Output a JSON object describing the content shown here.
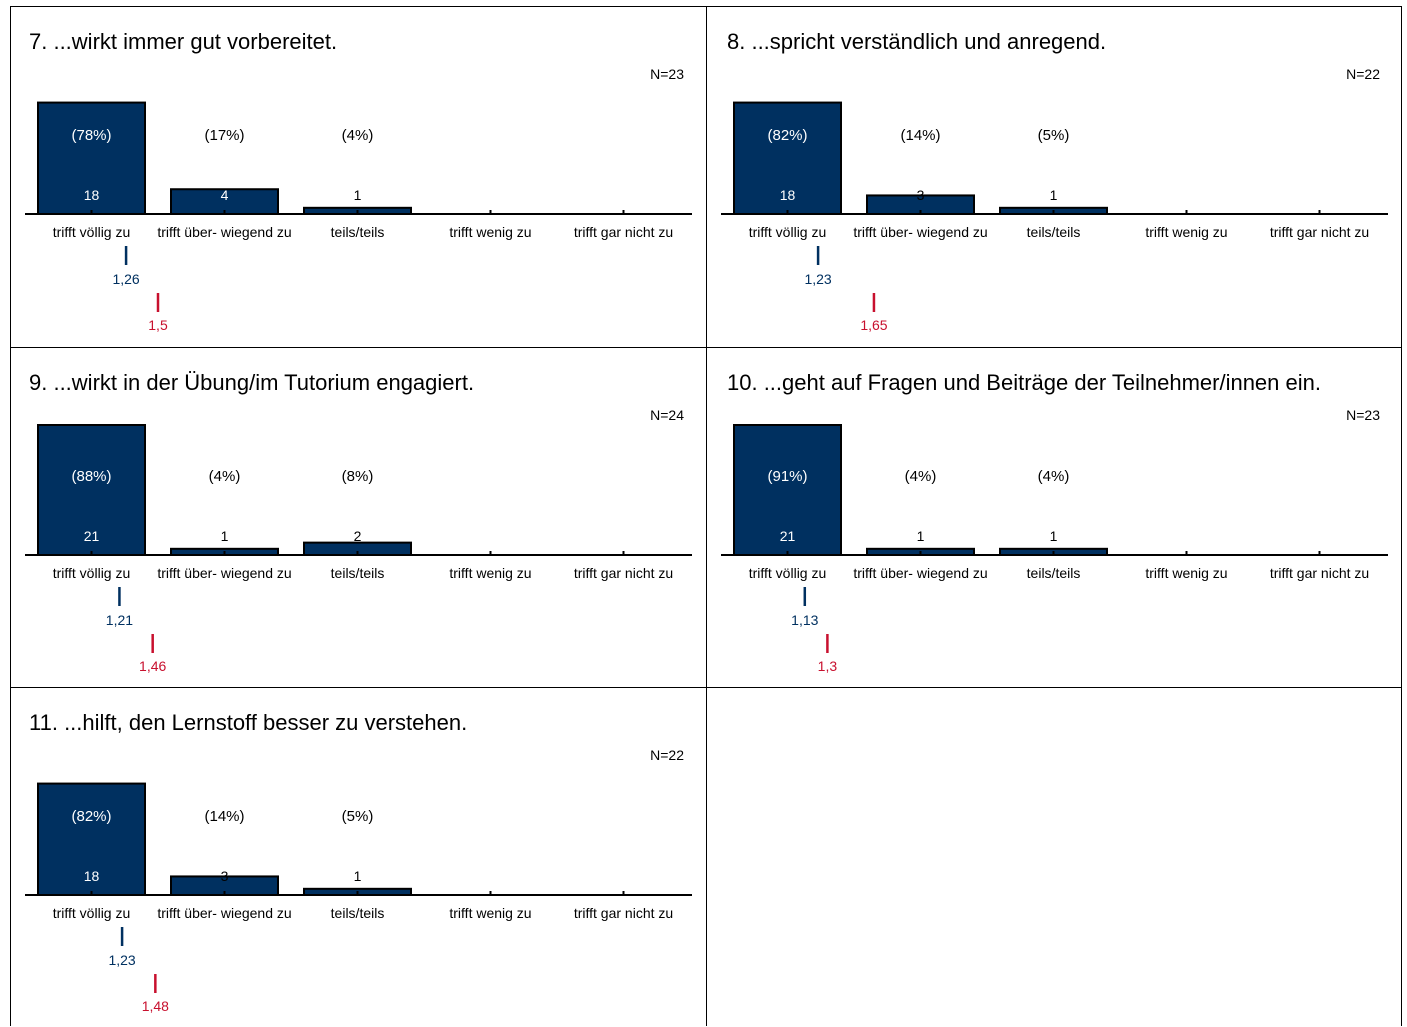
{
  "categories": [
    "trifft völlig zu",
    "trifft über- wiegend zu",
    "teils/teils",
    "trifft wenig zu",
    "trifft gar nicht zu"
  ],
  "colors": {
    "bar": "#003060",
    "mean": "#003060",
    "comparison": "#c8102e"
  },
  "chart_data": [
    {
      "type": "bar",
      "title": "7. ...wirkt immer gut vorbereitet.",
      "n_label": "N=23",
      "categories": [
        "trifft völlig zu",
        "trifft über- wiegend zu",
        "teils/teils",
        "trifft wenig zu",
        "trifft gar nicht zu"
      ],
      "values": [
        18,
        4,
        1,
        0,
        0
      ],
      "percent_labels": [
        "(78%)",
        "(17%)",
        "(4%)",
        "",
        ""
      ],
      "value_labels": [
        "18",
        "4",
        "1",
        "",
        ""
      ],
      "mean": 1.26,
      "mean_label": "1,26",
      "comparison": 1.5,
      "comparison_label": "1,5"
    },
    {
      "type": "bar",
      "title": "8. ...spricht verständlich und anregend.",
      "n_label": "N=22",
      "categories": [
        "trifft völlig zu",
        "trifft über- wiegend zu",
        "teils/teils",
        "trifft wenig zu",
        "trifft gar nicht zu"
      ],
      "values": [
        18,
        3,
        1,
        0,
        0
      ],
      "percent_labels": [
        "(82%)",
        "(14%)",
        "(5%)",
        "",
        ""
      ],
      "value_labels": [
        "18",
        "3",
        "1",
        "",
        ""
      ],
      "mean": 1.23,
      "mean_label": "1,23",
      "comparison": 1.65,
      "comparison_label": "1,65"
    },
    {
      "type": "bar",
      "title": "9. ...wirkt in der Übung/im Tutorium engagiert.",
      "n_label": "N=24",
      "categories": [
        "trifft völlig zu",
        "trifft über- wiegend zu",
        "teils/teils",
        "trifft wenig zu",
        "trifft gar nicht zu"
      ],
      "values": [
        21,
        1,
        2,
        0,
        0
      ],
      "percent_labels": [
        "(88%)",
        "(4%)",
        "(8%)",
        "",
        ""
      ],
      "value_labels": [
        "21",
        "1",
        "2",
        "",
        ""
      ],
      "mean": 1.21,
      "mean_label": "1,21",
      "comparison": 1.46,
      "comparison_label": "1,46"
    },
    {
      "type": "bar",
      "title": "10. ...geht auf Fragen und Beiträge der Teilnehmer/innen ein.",
      "n_label": "N=23",
      "categories": [
        "trifft völlig zu",
        "trifft über- wiegend zu",
        "teils/teils",
        "trifft wenig zu",
        "trifft gar nicht zu"
      ],
      "values": [
        21,
        1,
        1,
        0,
        0
      ],
      "percent_labels": [
        "(91%)",
        "(4%)",
        "(4%)",
        "",
        ""
      ],
      "value_labels": [
        "21",
        "1",
        "1",
        "",
        ""
      ],
      "mean": 1.13,
      "mean_label": "1,13",
      "comparison": 1.3,
      "comparison_label": "1,3"
    },
    {
      "type": "bar",
      "title": "11. ...hilft, den Lernstoff besser zu verstehen.",
      "n_label": "N=22",
      "categories": [
        "trifft völlig zu",
        "trifft über- wiegend zu",
        "teils/teils",
        "trifft wenig zu",
        "trifft gar nicht zu"
      ],
      "values": [
        18,
        3,
        1,
        0,
        0
      ],
      "percent_labels": [
        "(82%)",
        "(14%)",
        "(5%)",
        "",
        ""
      ],
      "value_labels": [
        "18",
        "3",
        "1",
        "",
        ""
      ],
      "mean": 1.23,
      "mean_label": "1,23",
      "comparison": 1.48,
      "comparison_label": "1,48"
    }
  ]
}
